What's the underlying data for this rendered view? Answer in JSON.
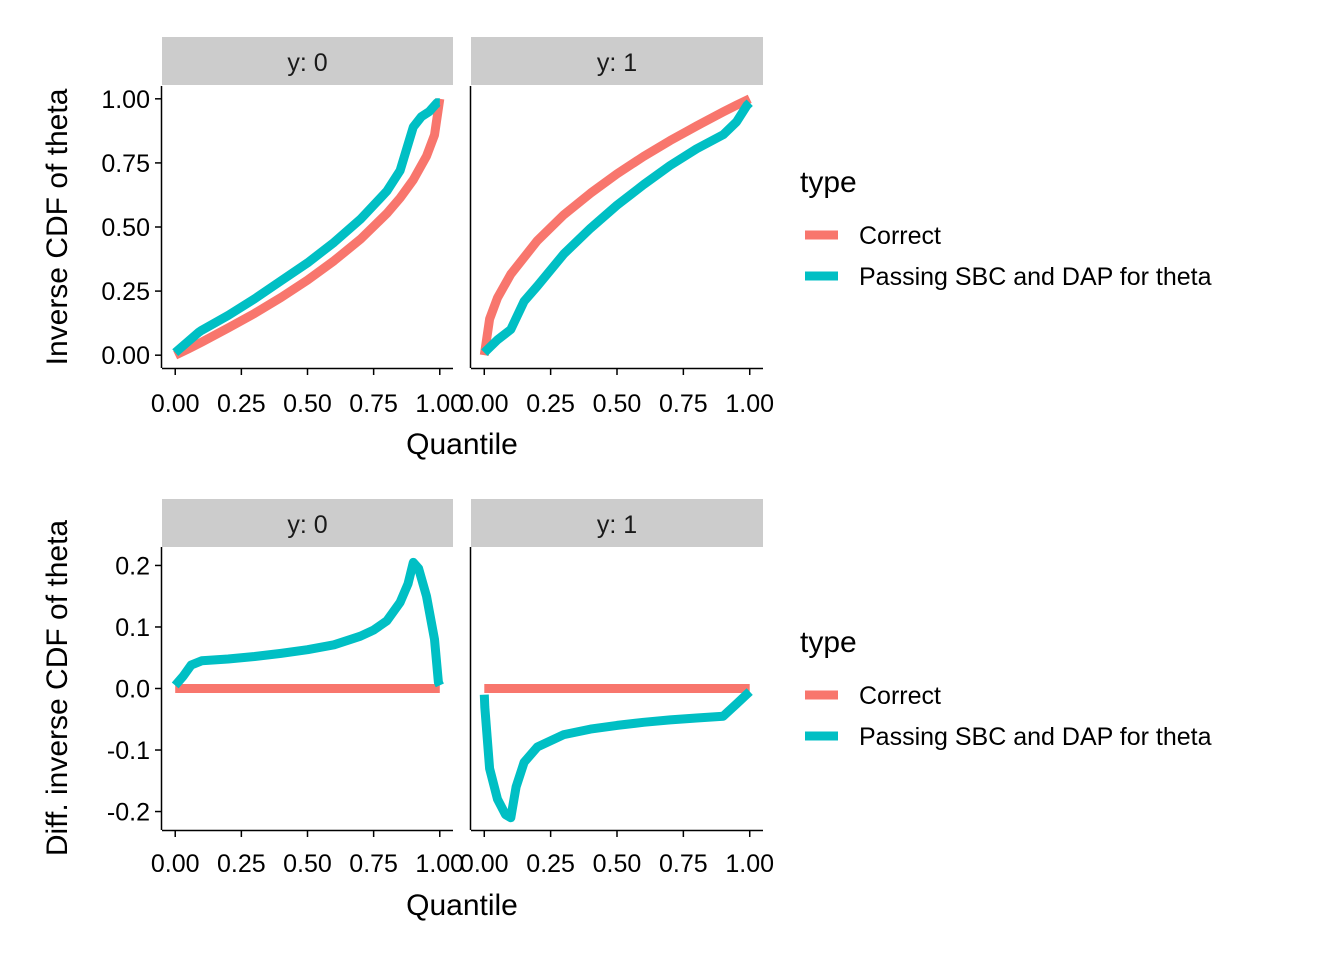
{
  "colors": {
    "correct": "#F8766D",
    "passing": "#00BFC4",
    "strip_bg": "#CCCCCC",
    "axis": "#000000"
  },
  "chart_data": [
    {
      "type": "line",
      "facet_var": "y",
      "facets": [
        "y: 0",
        "y: 1"
      ],
      "xlabel": "Quantile",
      "ylabel": "Inverse CDF of theta",
      "xlim": [
        0,
        1
      ],
      "ylim": [
        -0.05,
        1.05
      ],
      "x_ticks": [
        "0.00",
        "0.25",
        "0.50",
        "0.75",
        "1.00"
      ],
      "y_ticks": [
        "0.00",
        "0.25",
        "0.50",
        "0.75",
        "1.00"
      ],
      "legend": {
        "title": "type",
        "position": "right",
        "entries": [
          "Correct",
          "Passing SBC and DAP for theta"
        ]
      },
      "panels": [
        {
          "facet": "y: 0",
          "series": [
            {
              "name": "Correct",
              "color": "#F8766D",
              "x": [
                0.0,
                0.05,
                0.1,
                0.2,
                0.3,
                0.4,
                0.5,
                0.6,
                0.7,
                0.8,
                0.85,
                0.9,
                0.95,
                0.98,
                1.0
              ],
              "y": [
                0.0,
                0.025,
                0.051,
                0.106,
                0.163,
                0.225,
                0.293,
                0.368,
                0.452,
                0.553,
                0.613,
                0.684,
                0.776,
                0.859,
                1.0
              ]
            },
            {
              "name": "Passing SBC and DAP for theta",
              "color": "#00BFC4",
              "x": [
                0.0,
                0.05,
                0.09,
                0.1,
                0.2,
                0.3,
                0.4,
                0.5,
                0.6,
                0.7,
                0.8,
                0.85,
                0.9,
                0.93,
                0.96,
                0.99,
                1.0
              ],
              "y": [
                0.01,
                0.055,
                0.09,
                0.097,
                0.155,
                0.22,
                0.29,
                0.36,
                0.44,
                0.53,
                0.64,
                0.72,
                0.89,
                0.93,
                0.95,
                0.985,
                0.985
              ]
            }
          ]
        },
        {
          "facet": "y: 1",
          "series": [
            {
              "name": "Correct",
              "color": "#F8766D",
              "x": [
                0.0,
                0.02,
                0.05,
                0.1,
                0.2,
                0.3,
                0.4,
                0.5,
                0.6,
                0.7,
                0.8,
                0.9,
                0.95,
                1.0
              ],
              "y": [
                0.0,
                0.141,
                0.224,
                0.316,
                0.447,
                0.548,
                0.632,
                0.707,
                0.775,
                0.837,
                0.894,
                0.949,
                0.975,
                1.0
              ]
            },
            {
              "name": "Passing SBC and DAP for theta",
              "color": "#00BFC4",
              "x": [
                0.0,
                0.05,
                0.1,
                0.15,
                0.2,
                0.3,
                0.4,
                0.5,
                0.6,
                0.7,
                0.8,
                0.9,
                0.95,
                0.99,
                1.0
              ],
              "y": [
                0.01,
                0.06,
                0.1,
                0.21,
                0.27,
                0.395,
                0.495,
                0.585,
                0.665,
                0.74,
                0.805,
                0.86,
                0.91,
                0.975,
                0.985
              ]
            }
          ]
        }
      ]
    },
    {
      "type": "line",
      "facet_var": "y",
      "facets": [
        "y: 0",
        "y: 1"
      ],
      "xlabel": "Quantile",
      "ylabel": "Diff. inverse CDF of theta",
      "xlim": [
        0,
        1
      ],
      "ylim": [
        -0.23,
        0.23
      ],
      "x_ticks": [
        "0.00",
        "0.25",
        "0.50",
        "0.75",
        "1.00"
      ],
      "y_ticks": [
        "-0.2",
        "-0.1",
        "0.0",
        "0.1",
        "0.2"
      ],
      "legend": {
        "title": "type",
        "position": "right",
        "entries": [
          "Correct",
          "Passing SBC and DAP for theta"
        ]
      },
      "panels": [
        {
          "facet": "y: 0",
          "series": [
            {
              "name": "Correct",
              "color": "#F8766D",
              "x": [
                0.0,
                1.0
              ],
              "y": [
                0.0,
                0.0
              ]
            },
            {
              "name": "Passing SBC and DAP for theta",
              "color": "#00BFC4",
              "x": [
                0.0,
                0.03,
                0.06,
                0.1,
                0.2,
                0.3,
                0.4,
                0.5,
                0.6,
                0.7,
                0.75,
                0.8,
                0.85,
                0.88,
                0.9,
                0.92,
                0.95,
                0.98,
                0.995,
                1.0
              ],
              "y": [
                0.005,
                0.02,
                0.038,
                0.045,
                0.048,
                0.052,
                0.057,
                0.063,
                0.071,
                0.085,
                0.095,
                0.11,
                0.14,
                0.17,
                0.205,
                0.195,
                0.15,
                0.08,
                0.01,
                0.005
              ]
            }
          ]
        },
        {
          "facet": "y: 1",
          "series": [
            {
              "name": "Correct",
              "color": "#F8766D",
              "x": [
                0.0,
                1.0
              ],
              "y": [
                0.0,
                0.0
              ]
            },
            {
              "name": "Passing SBC and DAP for theta",
              "color": "#00BFC4",
              "x": [
                0.0,
                0.002,
                0.02,
                0.05,
                0.08,
                0.1,
                0.12,
                0.15,
                0.2,
                0.3,
                0.4,
                0.5,
                0.6,
                0.7,
                0.8,
                0.9,
                0.95,
                1.0
              ],
              "y": [
                -0.01,
                -0.03,
                -0.13,
                -0.18,
                -0.205,
                -0.21,
                -0.16,
                -0.12,
                -0.095,
                -0.075,
                -0.066,
                -0.06,
                -0.055,
                -0.051,
                -0.048,
                -0.045,
                -0.025,
                -0.005
              ]
            }
          ]
        }
      ]
    }
  ]
}
